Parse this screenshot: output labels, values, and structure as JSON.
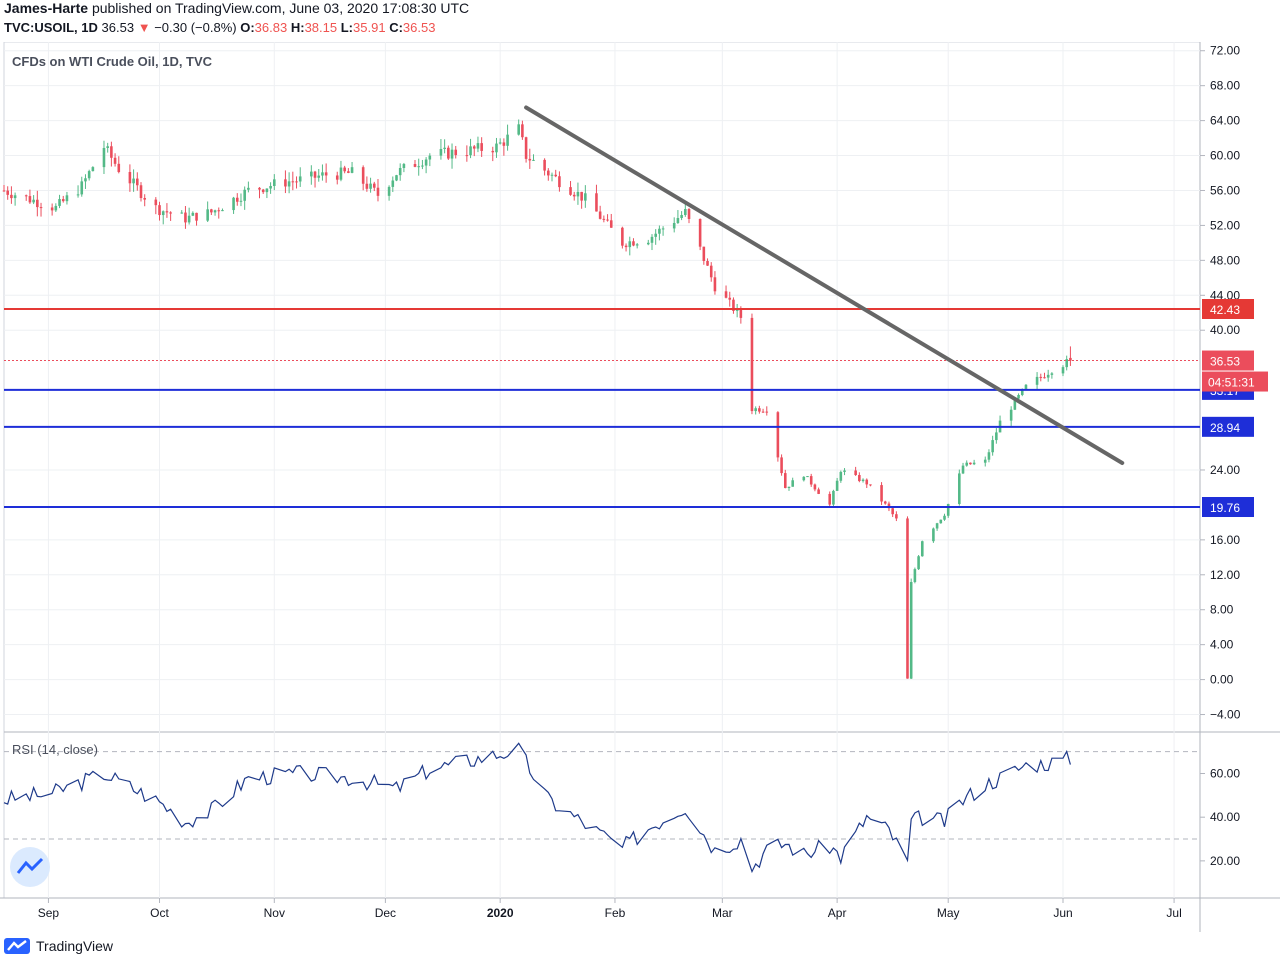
{
  "header": {
    "author": "James-Harte",
    "published_text": " published on TradingView.com, June 03, 2020 17:08:30 UTC",
    "symbol": "TVC:USOIL, 1D",
    "price": "36.53",
    "change_arrow": "▼",
    "change": "−0.30 (−0.8%)",
    "o_label": "O:",
    "o_value": "36.83",
    "h_label": "H:",
    "h_value": "38.15",
    "l_label": "L:",
    "l_value": "35.91",
    "c_label": "C:",
    "c_value": "36.53"
  },
  "footer": {
    "brand": "TradingView"
  },
  "colors": {
    "up": "#53b987",
    "down": "#eb4d5c",
    "resistance": "#e53935",
    "support": "#1e2ed8",
    "trendline": "#666666",
    "rsi": "#1e3a8a"
  },
  "chart_data": {
    "type": "candlestick",
    "title": "CFDs on WTI Crude Oil, 1D, TVC",
    "price_axis": {
      "ticks": [
        "72.00",
        "68.00",
        "64.00",
        "60.00",
        "56.00",
        "52.00",
        "48.00",
        "44.00",
        "40.00",
        "24.00",
        "16.00",
        "12.00",
        "8.00",
        "4.00",
        "0.00",
        "−4.00"
      ],
      "ylim": [
        -6,
        73
      ]
    },
    "time_axis": {
      "labels": [
        "Sep",
        "Oct",
        "Nov",
        "Dec",
        "2020",
        "Feb",
        "Mar",
        "Apr",
        "May",
        "Jun",
        "Jul"
      ],
      "label_dates": [
        "2019-09-01",
        "2019-10-01",
        "2019-11-01",
        "2019-12-01",
        "2020-01-01",
        "2020-02-01",
        "2020-03-01",
        "2020-04-01",
        "2020-05-01",
        "2020-06-01",
        "2020-07-01"
      ],
      "xlim": [
        "2019-08-20",
        "2020-07-08"
      ]
    },
    "horizontal_levels": [
      {
        "value": 42.43,
        "label": "42.43",
        "role": "resistance"
      },
      {
        "value": 33.17,
        "label": "33.17",
        "role": "support"
      },
      {
        "value": 28.94,
        "label": "28.94",
        "role": "support"
      },
      {
        "value": 19.76,
        "label": "19.76",
        "role": "support"
      }
    ],
    "last_price": {
      "value": 36.53,
      "label": "36.53",
      "countdown": "04:51:31"
    },
    "trendline": {
      "start": {
        "date": "2020-01-08",
        "value": 65.5
      },
      "end": {
        "date": "2020-06-17",
        "value": 24.8
      }
    },
    "series": [
      {
        "name": "USOIL",
        "anchor_dates": [
          "2019-08-20",
          "2019-08-27",
          "2019-09-03",
          "2019-09-10",
          "2019-09-16",
          "2019-09-20",
          "2019-09-30",
          "2019-10-08",
          "2019-10-15",
          "2019-10-25",
          "2019-11-04",
          "2019-11-08",
          "2019-11-15",
          "2019-11-22",
          "2019-11-29",
          "2019-12-04",
          "2019-12-13",
          "2019-12-31",
          "2020-01-06",
          "2020-01-08",
          "2020-01-14",
          "2020-01-24",
          "2020-02-03",
          "2020-02-10",
          "2020-02-20",
          "2020-02-28",
          "2020-03-06",
          "2020-03-09",
          "2020-03-13",
          "2020-03-18",
          "2020-03-23",
          "2020-03-30",
          "2020-04-02",
          "2020-04-09",
          "2020-04-15",
          "2020-04-17",
          "2020-04-20",
          "2020-04-21",
          "2020-04-24",
          "2020-04-30",
          "2020-05-05",
          "2020-05-11",
          "2020-05-15",
          "2020-05-22",
          "2020-05-29",
          "2020-06-03"
        ],
        "anchor_close": [
          56.0,
          55.0,
          54.0,
          56.5,
          61.0,
          58.5,
          54.0,
          52.8,
          53.5,
          56.0,
          57.0,
          57.2,
          57.8,
          58.0,
          55.5,
          58.0,
          60.0,
          61.0,
          63.0,
          60.0,
          58.0,
          55.0,
          50.0,
          50.5,
          53.5,
          45.0,
          41.5,
          31.0,
          31.0,
          22.0,
          23.5,
          20.0,
          24.0,
          22.5,
          19.5,
          18.3,
          0.0,
          11.0,
          16.0,
          19.0,
          24.5,
          25.0,
          29.5,
          33.5,
          35.5,
          36.53
        ]
      },
      {
        "name": "RSI (14, close)",
        "panel": "rsi",
        "yticks": [
          "60.00",
          "40.00",
          "20.00"
        ],
        "ylim": [
          3,
          79
        ],
        "levels": [
          30,
          70
        ],
        "anchor_dates": [
          "2019-08-20",
          "2019-09-02",
          "2019-09-16",
          "2019-10-01",
          "2019-10-08",
          "2019-10-15",
          "2019-10-25",
          "2019-11-08",
          "2019-11-22",
          "2019-12-04",
          "2019-12-13",
          "2020-01-06",
          "2020-01-08",
          "2020-01-14",
          "2020-01-24",
          "2020-02-03",
          "2020-02-10",
          "2020-02-20",
          "2020-02-28",
          "2020-03-06",
          "2020-03-09",
          "2020-03-13",
          "2020-03-18",
          "2020-03-23",
          "2020-03-30",
          "2020-04-02",
          "2020-04-09",
          "2020-04-15",
          "2020-04-20",
          "2020-04-21",
          "2020-04-24",
          "2020-04-30",
          "2020-05-05",
          "2020-05-11",
          "2020-05-15",
          "2020-05-22",
          "2020-05-29",
          "2020-06-03"
        ],
        "anchor_values": [
          48,
          51,
          60,
          47,
          38,
          43,
          58,
          60,
          58,
          53,
          62,
          71,
          65,
          48,
          37,
          26,
          35,
          45,
          25,
          30,
          17,
          25,
          28,
          23,
          27,
          22,
          40,
          34,
          19,
          38,
          40,
          38,
          48,
          55,
          58,
          64,
          65,
          67
        ]
      }
    ]
  }
}
